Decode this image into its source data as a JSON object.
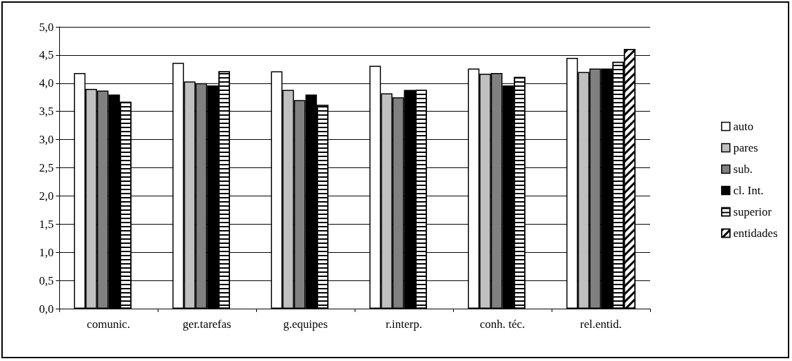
{
  "chart_data": {
    "type": "bar",
    "categories": [
      "comunic.",
      "ger.tarefas",
      "g.equipes",
      "r.interp.",
      "conh. téc.",
      "rel.entid."
    ],
    "series": [
      {
        "name": "auto",
        "color": "#ffffff",
        "values": [
          4.18,
          4.36,
          4.21,
          4.31,
          4.26,
          4.45
        ]
      },
      {
        "name": "pares",
        "color": "#c0c0c0",
        "values": [
          3.9,
          4.03,
          3.88,
          3.82,
          4.17,
          4.2
        ]
      },
      {
        "name": "sub.",
        "color": "#808080",
        "values": [
          3.87,
          4.0,
          3.7,
          3.75,
          4.18,
          4.26
        ]
      },
      {
        "name": "cl. Int.",
        "color": "#000000",
        "values": [
          3.8,
          3.96,
          3.8,
          3.88,
          3.96,
          4.26
        ]
      },
      {
        "name": "superior",
        "color": "#ffffff",
        "values": [
          3.67,
          4.21,
          3.62,
          3.88,
          4.11,
          4.38
        ]
      },
      {
        "name": "entidades",
        "color": "#ffffff",
        "values": [
          null,
          null,
          null,
          null,
          null,
          4.61
        ]
      }
    ],
    "ylim": [
      0,
      5
    ],
    "yticks": [
      {
        "value": 0,
        "label": "0,0"
      },
      {
        "value": 0.5,
        "label": "0,5"
      },
      {
        "value": 1,
        "label": "1,0"
      },
      {
        "value": 1.5,
        "label": "1,5"
      },
      {
        "value": 2,
        "label": "2,0"
      },
      {
        "value": 2.5,
        "label": "2,5"
      },
      {
        "value": 3,
        "label": "3,0"
      },
      {
        "value": 3.5,
        "label": "3,5"
      },
      {
        "value": 4,
        "label": "4,0"
      },
      {
        "value": 4.5,
        "label": "4,5"
      },
      {
        "value": 5,
        "label": "5,0"
      }
    ],
    "grid": "y",
    "legend": "right"
  }
}
